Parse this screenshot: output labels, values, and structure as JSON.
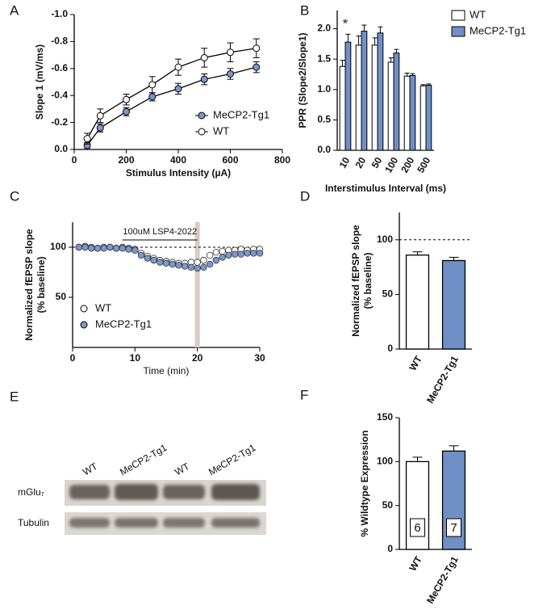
{
  "chart_data": [
    {
      "panel": "A",
      "type": "line",
      "xlabel": "Stimulus Intensity (µA)",
      "ylabel": [
        "Slope 1 (mV/ms)"
      ],
      "x": [
        50,
        100,
        200,
        300,
        400,
        500,
        600,
        700
      ],
      "xlim": [
        0,
        800
      ],
      "xticks": [
        0,
        200,
        400,
        600,
        800
      ],
      "ylim": [
        0,
        -1.0
      ],
      "yticks": [
        {
          "value": 0,
          "label": "0.0"
        },
        -0.2,
        -0.4,
        -0.6,
        -0.8,
        {
          "value": -1.0,
          "label": "-1.0"
        }
      ],
      "legend": "lower right",
      "series": [
        {
          "name": "MeCP2-Tg1",
          "color": "#7b98cf",
          "values": [
            -0.03,
            -0.16,
            -0.28,
            -0.39,
            -0.45,
            -0.52,
            -0.56,
            -0.61
          ],
          "errors": [
            0.02,
            0.03,
            0.03,
            0.03,
            0.04,
            0.04,
            0.04,
            0.04
          ]
        },
        {
          "name": "WT",
          "color": "#ffffff",
          "values": [
            -0.08,
            -0.25,
            -0.37,
            -0.48,
            -0.61,
            -0.68,
            -0.72,
            -0.75
          ],
          "errors": [
            0.04,
            0.05,
            0.04,
            0.06,
            0.06,
            0.07,
            0.07,
            0.07
          ]
        }
      ]
    },
    {
      "panel": "B",
      "type": "bar",
      "xlabel": "Interstimulus Interval (ms)",
      "ylabel": [
        "PPR (Slope2/Slope1)"
      ],
      "categories": [
        "10",
        "20",
        "50",
        "100",
        "200",
        "500"
      ],
      "ylim": [
        0,
        2.3
      ],
      "yticks": [
        {
          "value": 0,
          "label": "0.0"
        },
        0.5,
        {
          "value": 1,
          "label": "1.0"
        },
        1.5,
        {
          "value": 2,
          "label": "2.0"
        }
      ],
      "legend": "upper right",
      "annotation": {
        "text": "*",
        "category": "10"
      },
      "series": [
        {
          "name": "WT",
          "color": "#ffffff",
          "values": [
            1.38,
            1.73,
            1.73,
            1.45,
            1.22,
            1.06
          ],
          "errors": [
            0.1,
            0.15,
            0.12,
            0.07,
            0.05,
            0.02
          ]
        },
        {
          "name": "MeCP2-Tg1",
          "color": "#6f8fc7",
          "values": [
            1.78,
            1.96,
            1.93,
            1.6,
            1.23,
            1.07
          ],
          "errors": [
            0.13,
            0.1,
            0.1,
            0.06,
            0.03,
            0.02
          ]
        }
      ]
    },
    {
      "panel": "C",
      "type": "scatter",
      "xlabel": "Time (min)",
      "ylabel": [
        "Normalized fEPSP slope",
        "(% baseline)"
      ],
      "x": [
        1,
        2,
        3,
        4,
        5,
        6,
        7,
        8,
        9,
        10,
        11,
        12,
        13,
        14,
        15,
        16,
        17,
        18,
        19,
        20,
        21,
        22,
        23,
        24,
        25,
        26,
        27,
        28,
        29,
        30
      ],
      "xlim": [
        0,
        30
      ],
      "xticks": [
        0,
        10,
        20,
        30
      ],
      "ylim": [
        0,
        125
      ],
      "yticks": [
        50,
        100
      ],
      "hline": 100,
      "shade_x": 20,
      "annotation": {
        "text": "100uM LSP4-2022",
        "start": 8,
        "end": 20
      },
      "legend": "lower left",
      "series": [
        {
          "name": "WT",
          "color": "#ffffff",
          "values": [
            100,
            101,
            100,
            99,
            100,
            100,
            99,
            100,
            99,
            98,
            94,
            91,
            89,
            87,
            86,
            85,
            84,
            84,
            85,
            85,
            87,
            92,
            95,
            96,
            97,
            97,
            98,
            97,
            98,
            98
          ]
        },
        {
          "name": "MeCP2-Tg1",
          "color": "#7b98cf",
          "values": [
            100,
            100,
            99,
            99,
            99,
            100,
            99,
            99,
            98,
            97,
            92,
            89,
            87,
            85,
            84,
            83,
            82,
            81,
            80,
            79,
            80,
            83,
            87,
            90,
            92,
            93,
            93,
            94,
            94,
            94
          ]
        }
      ]
    },
    {
      "panel": "D",
      "type": "bar",
      "ylabel": [
        "Normalized fEPSP slope",
        "(% baseline)"
      ],
      "categories": [
        "WT",
        "MeCP2-Tg1"
      ],
      "values": [
        86,
        81
      ],
      "errors": [
        3,
        3
      ],
      "colors": [
        "#ffffff",
        "#6f8fc7"
      ],
      "ylim": [
        0,
        125
      ],
      "yticks": [
        0,
        50,
        100
      ],
      "hline": 100
    },
    {
      "panel": "F",
      "type": "bar",
      "ylabel": [
        "% Wildtype  Expression"
      ],
      "categories": [
        "WT",
        "MeCP2-Tg1"
      ],
      "values": [
        100,
        112
      ],
      "errors": [
        5,
        6
      ],
      "colors": [
        "#ffffff",
        "#6f8fc7"
      ],
      "n_labels": [
        "6",
        "7"
      ],
      "ylim": [
        0,
        150
      ],
      "yticks": [
        0,
        50,
        100,
        150
      ]
    }
  ],
  "blot": {
    "panel": "E",
    "lanes": [
      "WT",
      "MeCP2-Tg1",
      "WT",
      "MeCP2-Tg1"
    ],
    "rows": [
      "mGlu₇",
      "Tubulin"
    ]
  }
}
